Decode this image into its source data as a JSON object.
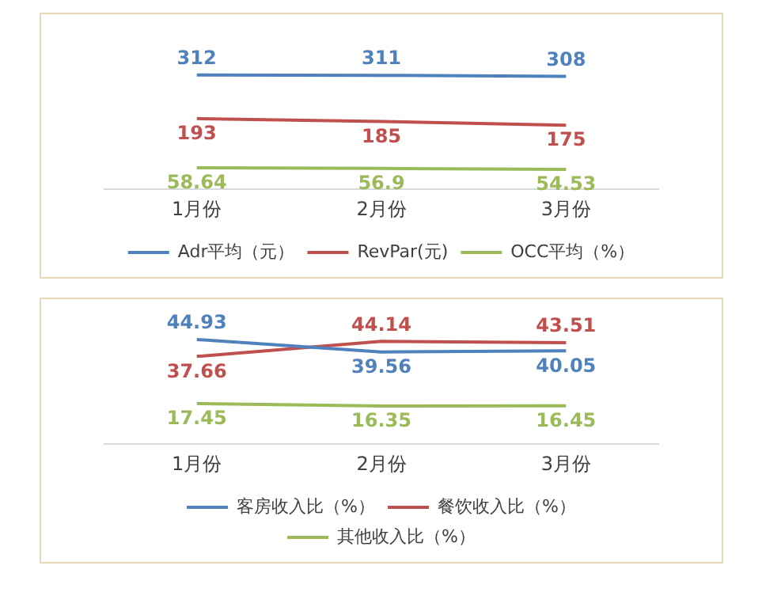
{
  "chart_data": [
    {
      "type": "line",
      "categories": [
        "1月份",
        "2月份",
        "3月份"
      ],
      "series": [
        {
          "name": "Adr平均（元）",
          "color": "#4f81bd",
          "values": [
            312,
            311,
            308
          ]
        },
        {
          "name": "RevPar(元)",
          "color": "#c0504d",
          "values": [
            193,
            185,
            175
          ]
        },
        {
          "name": "OCC平均（%）",
          "color": "#9bbb59",
          "values": [
            58.64,
            56.9,
            54.53
          ]
        }
      ],
      "data_labels": true,
      "legend": "bottom",
      "grid": false,
      "marker": "none",
      "tick_labels": "x"
    },
    {
      "type": "line",
      "categories": [
        "1月份",
        "2月份",
        "3月份"
      ],
      "series": [
        {
          "name": "客房收入比（%）",
          "color": "#4f81bd",
          "values": [
            44.93,
            39.56,
            40.05
          ]
        },
        {
          "name": "餐饮收入比（%）",
          "color": "#c0504d",
          "values": [
            37.66,
            44.14,
            43.51
          ]
        },
        {
          "name": "其他收入比（%）",
          "color": "#9bbb59",
          "values": [
            17.45,
            16.35,
            16.45
          ]
        }
      ],
      "data_labels": true,
      "legend": "bottom",
      "grid": false,
      "marker": "none",
      "tick_labels": "x"
    }
  ]
}
